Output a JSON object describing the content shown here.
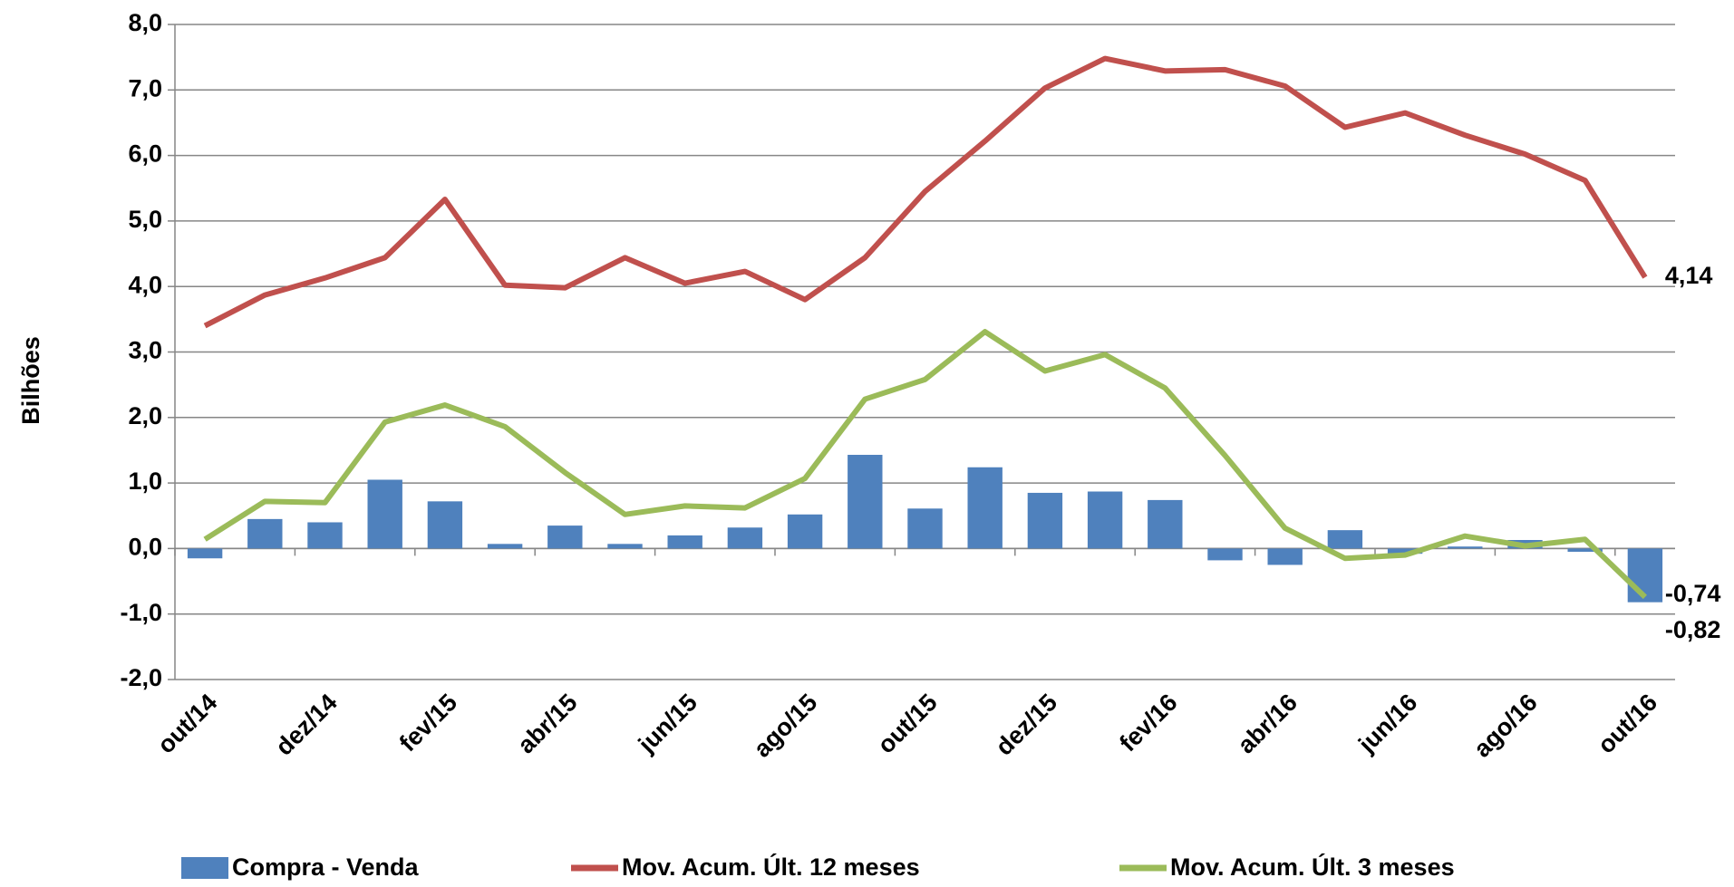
{
  "chart_data": {
    "type": "bar_line",
    "y_label": "Bilhões",
    "categories": [
      "out/14",
      null,
      "dez/14",
      null,
      "fev/15",
      null,
      "abr/15",
      null,
      "jun/15",
      null,
      "ago/15",
      null,
      "out/15",
      null,
      "dez/15",
      null,
      "fev/16",
      null,
      "abr/16",
      null,
      "jun/16",
      null,
      "ago/16",
      null,
      "out/16"
    ],
    "series": [
      {
        "name": "Compra - Venda",
        "type": "bar",
        "color": "#4f81bd",
        "label_color": "#4f81bd",
        "values": [
          -0.15,
          0.45,
          0.4,
          1.05,
          0.72,
          0.07,
          0.35,
          0.07,
          0.2,
          0.32,
          0.52,
          1.43,
          0.61,
          1.24,
          0.85,
          0.87,
          0.74,
          -0.18,
          -0.25,
          0.28,
          -0.08,
          0.03,
          0.13,
          -0.05,
          -0.82
        ],
        "value_labels": [
          null,
          null,
          null,
          null,
          null,
          null,
          null,
          null,
          null,
          null,
          null,
          null,
          null,
          null,
          null,
          null,
          null,
          null,
          null,
          null,
          null,
          null,
          null,
          null,
          "-0,82"
        ]
      },
      {
        "name": "Mov. Acum. Últ. 12 meses",
        "type": "line",
        "color": "#c0504d",
        "label_color": "#c00000",
        "values": [
          3.4,
          3.87,
          4.13,
          4.44,
          5.33,
          4.02,
          3.98,
          4.44,
          4.05,
          4.23,
          3.8,
          4.44,
          5.45,
          6.22,
          7.03,
          7.48,
          7.29,
          7.31,
          7.06,
          6.43,
          6.65,
          6.31,
          6.02,
          5.62,
          4.14
        ],
        "value_labels": [
          null,
          null,
          null,
          null,
          null,
          null,
          null,
          null,
          null,
          null,
          null,
          null,
          null,
          null,
          null,
          null,
          null,
          null,
          null,
          null,
          null,
          null,
          null,
          null,
          "4,14"
        ]
      },
      {
        "name": "Mov. Acum. Últ. 3 meses",
        "type": "line",
        "color": "#9bbb59",
        "label_color": "#77933c",
        "values": [
          0.14,
          0.72,
          0.7,
          1.93,
          2.19,
          1.86,
          1.16,
          0.52,
          0.65,
          0.62,
          1.07,
          2.28,
          2.58,
          3.31,
          2.71,
          2.96,
          2.45,
          1.42,
          0.31,
          -0.15,
          -0.1,
          0.19,
          0.04,
          0.14,
          -0.74
        ],
        "value_labels": [
          null,
          null,
          null,
          null,
          null,
          null,
          null,
          null,
          null,
          null,
          null,
          null,
          null,
          null,
          null,
          null,
          null,
          null,
          null,
          null,
          null,
          null,
          null,
          null,
          "-0,74"
        ]
      }
    ],
    "ylim": [
      -2,
      8
    ],
    "yticks": [
      {
        "value": -2,
        "label": "-2,0"
      },
      {
        "value": -1,
        "label": "-1,0"
      },
      {
        "value": 0,
        "label": "0,0"
      },
      {
        "value": 1,
        "label": "1,0"
      },
      {
        "value": 2,
        "label": "2,0"
      },
      {
        "value": 3,
        "label": "3,0"
      },
      {
        "value": 4,
        "label": "4,0"
      },
      {
        "value": 5,
        "label": "5,0"
      },
      {
        "value": 6,
        "label": "6,0"
      },
      {
        "value": 7,
        "label": "7,0"
      },
      {
        "value": 8,
        "label": "8,0"
      }
    ],
    "grid": true,
    "legend": "bottom"
  }
}
